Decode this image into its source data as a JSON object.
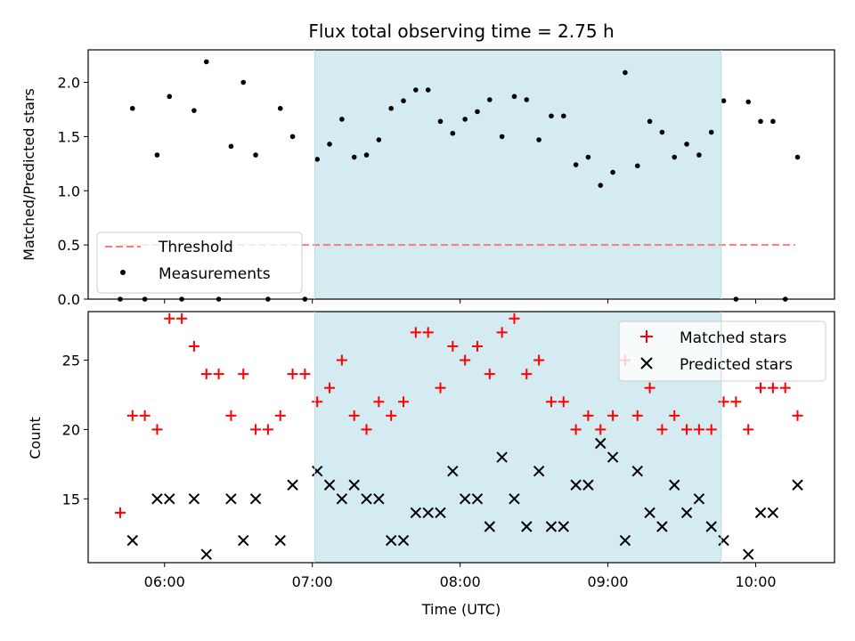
{
  "chart_data": [
    {
      "type": "scatter",
      "title": "Flux total observing time = 2.75 h",
      "ylabel": "Matched/Predicted stars",
      "xlabel": "",
      "xlim": [
        "05:29",
        "10:32"
      ],
      "ylim": [
        0,
        2.3
      ],
      "yticks": [
        "0.0",
        "0.5",
        "1.0",
        "1.5",
        "2.0"
      ],
      "grid": false,
      "legend_position": "lower-left",
      "shaded_region": {
        "start": "07:01",
        "end": "09:46",
        "color": "#d4ebf1"
      },
      "series": [
        {
          "name": "Threshold",
          "kind": "line",
          "style": "dashed",
          "color": "#f07f7f",
          "x": [
            "05:42",
            "10:16"
          ],
          "y": [
            0.5,
            0.5
          ]
        },
        {
          "name": "Measurements",
          "kind": "scatter",
          "color": "#000000",
          "x": [
            "05:42",
            "05:47",
            "05:52",
            "05:57",
            "06:02",
            "06:07",
            "06:12",
            "06:17",
            "06:22",
            "06:27",
            "06:32",
            "06:37",
            "06:42",
            "06:47",
            "06:52",
            "06:57",
            "07:02",
            "07:07",
            "07:12",
            "07:17",
            "07:22",
            "07:27",
            "07:32",
            "07:37",
            "07:42",
            "07:47",
            "07:52",
            "07:57",
            "08:02",
            "08:07",
            "08:12",
            "08:17",
            "08:22",
            "08:27",
            "08:32",
            "08:37",
            "08:42",
            "08:47",
            "08:52",
            "08:57",
            "09:02",
            "09:07",
            "09:12",
            "09:17",
            "09:22",
            "09:27",
            "09:32",
            "09:37",
            "09:42",
            "09:47",
            "09:52",
            "09:57",
            "10:02",
            "10:07",
            "10:12",
            "10:17"
          ],
          "y": [
            0.0,
            1.76,
            0.0,
            1.33,
            1.87,
            0.0,
            1.74,
            2.19,
            0.0,
            1.41,
            2.0,
            1.33,
            0.0,
            1.76,
            1.5,
            0.0,
            1.29,
            1.43,
            1.66,
            1.31,
            1.33,
            1.47,
            1.76,
            1.83,
            1.93,
            1.93,
            1.64,
            1.53,
            1.66,
            1.73,
            1.84,
            1.5,
            1.87,
            1.84,
            1.47,
            1.69,
            1.69,
            1.24,
            1.31,
            1.05,
            1.17,
            2.09,
            1.23,
            1.64,
            1.54,
            1.31,
            1.43,
            1.33,
            1.54,
            1.83,
            0.0,
            1.82,
            1.64,
            1.64,
            0.0,
            1.31
          ]
        }
      ]
    },
    {
      "type": "scatter",
      "title": "",
      "ylabel": "Count",
      "xlabel": "Time (UTC)",
      "xlim": [
        "05:29",
        "10:32"
      ],
      "ylim": [
        10.4,
        28.5
      ],
      "yticks": [
        "15",
        "20",
        "25"
      ],
      "xticks": [
        "06:00",
        "07:00",
        "08:00",
        "09:00",
        "10:00"
      ],
      "grid": false,
      "legend_position": "upper-right",
      "shaded_region": {
        "start": "07:01",
        "end": "09:46",
        "color": "#d4ebf1"
      },
      "series": [
        {
          "name": "Matched stars",
          "kind": "scatter",
          "marker": "plus",
          "color": "#ff0000",
          "x": [
            "05:42",
            "05:47",
            "05:52",
            "05:57",
            "06:02",
            "06:07",
            "06:12",
            "06:17",
            "06:22",
            "06:27",
            "06:32",
            "06:37",
            "06:42",
            "06:47",
            "06:52",
            "06:57",
            "07:02",
            "07:07",
            "07:12",
            "07:17",
            "07:22",
            "07:27",
            "07:32",
            "07:37",
            "07:42",
            "07:47",
            "07:52",
            "07:57",
            "08:02",
            "08:07",
            "08:12",
            "08:17",
            "08:22",
            "08:27",
            "08:32",
            "08:37",
            "08:42",
            "08:47",
            "08:52",
            "08:57",
            "09:02",
            "09:07",
            "09:12",
            "09:17",
            "09:22",
            "09:27",
            "09:32",
            "09:37",
            "09:42",
            "09:47",
            "09:52",
            "09:57",
            "10:02",
            "10:07",
            "10:12",
            "10:17"
          ],
          "y": [
            14,
            21,
            21,
            20,
            28,
            28,
            26,
            24,
            24,
            21,
            24,
            20,
            20,
            21,
            24,
            24,
            22,
            23,
            25,
            21,
            20,
            22,
            21,
            22,
            27,
            27,
            23,
            26,
            25,
            26,
            24,
            27,
            28,
            24,
            25,
            22,
            22,
            20,
            21,
            20,
            21,
            25,
            21,
            23,
            20,
            21,
            20,
            20,
            20,
            22,
            22,
            20,
            23,
            23,
            23,
            21
          ]
        },
        {
          "name": "Predicted stars",
          "kind": "scatter",
          "marker": "x",
          "color": "#000000",
          "x": [
            "05:47",
            "05:57",
            "06:02",
            "06:12",
            "06:17",
            "06:27",
            "06:32",
            "06:37",
            "06:47",
            "06:52",
            "07:02",
            "07:07",
            "07:12",
            "07:17",
            "07:22",
            "07:27",
            "07:32",
            "07:37",
            "07:42",
            "07:47",
            "07:52",
            "07:57",
            "08:02",
            "08:07",
            "08:12",
            "08:17",
            "08:22",
            "08:27",
            "08:32",
            "08:37",
            "08:42",
            "08:47",
            "08:52",
            "08:57",
            "09:02",
            "09:07",
            "09:12",
            "09:17",
            "09:22",
            "09:27",
            "09:32",
            "09:37",
            "09:42",
            "09:47",
            "09:57",
            "10:02",
            "10:07",
            "10:17"
          ],
          "y": [
            12,
            15,
            15,
            15,
            11,
            15,
            12,
            15,
            12,
            16,
            17,
            16,
            15,
            16,
            15,
            15,
            12,
            12,
            14,
            14,
            14,
            17,
            15,
            15,
            13,
            18,
            15,
            13,
            17,
            13,
            13,
            16,
            16,
            19,
            18,
            12,
            17,
            14,
            13,
            16,
            14,
            15,
            13,
            12,
            11,
            14,
            14,
            16
          ]
        }
      ]
    }
  ]
}
